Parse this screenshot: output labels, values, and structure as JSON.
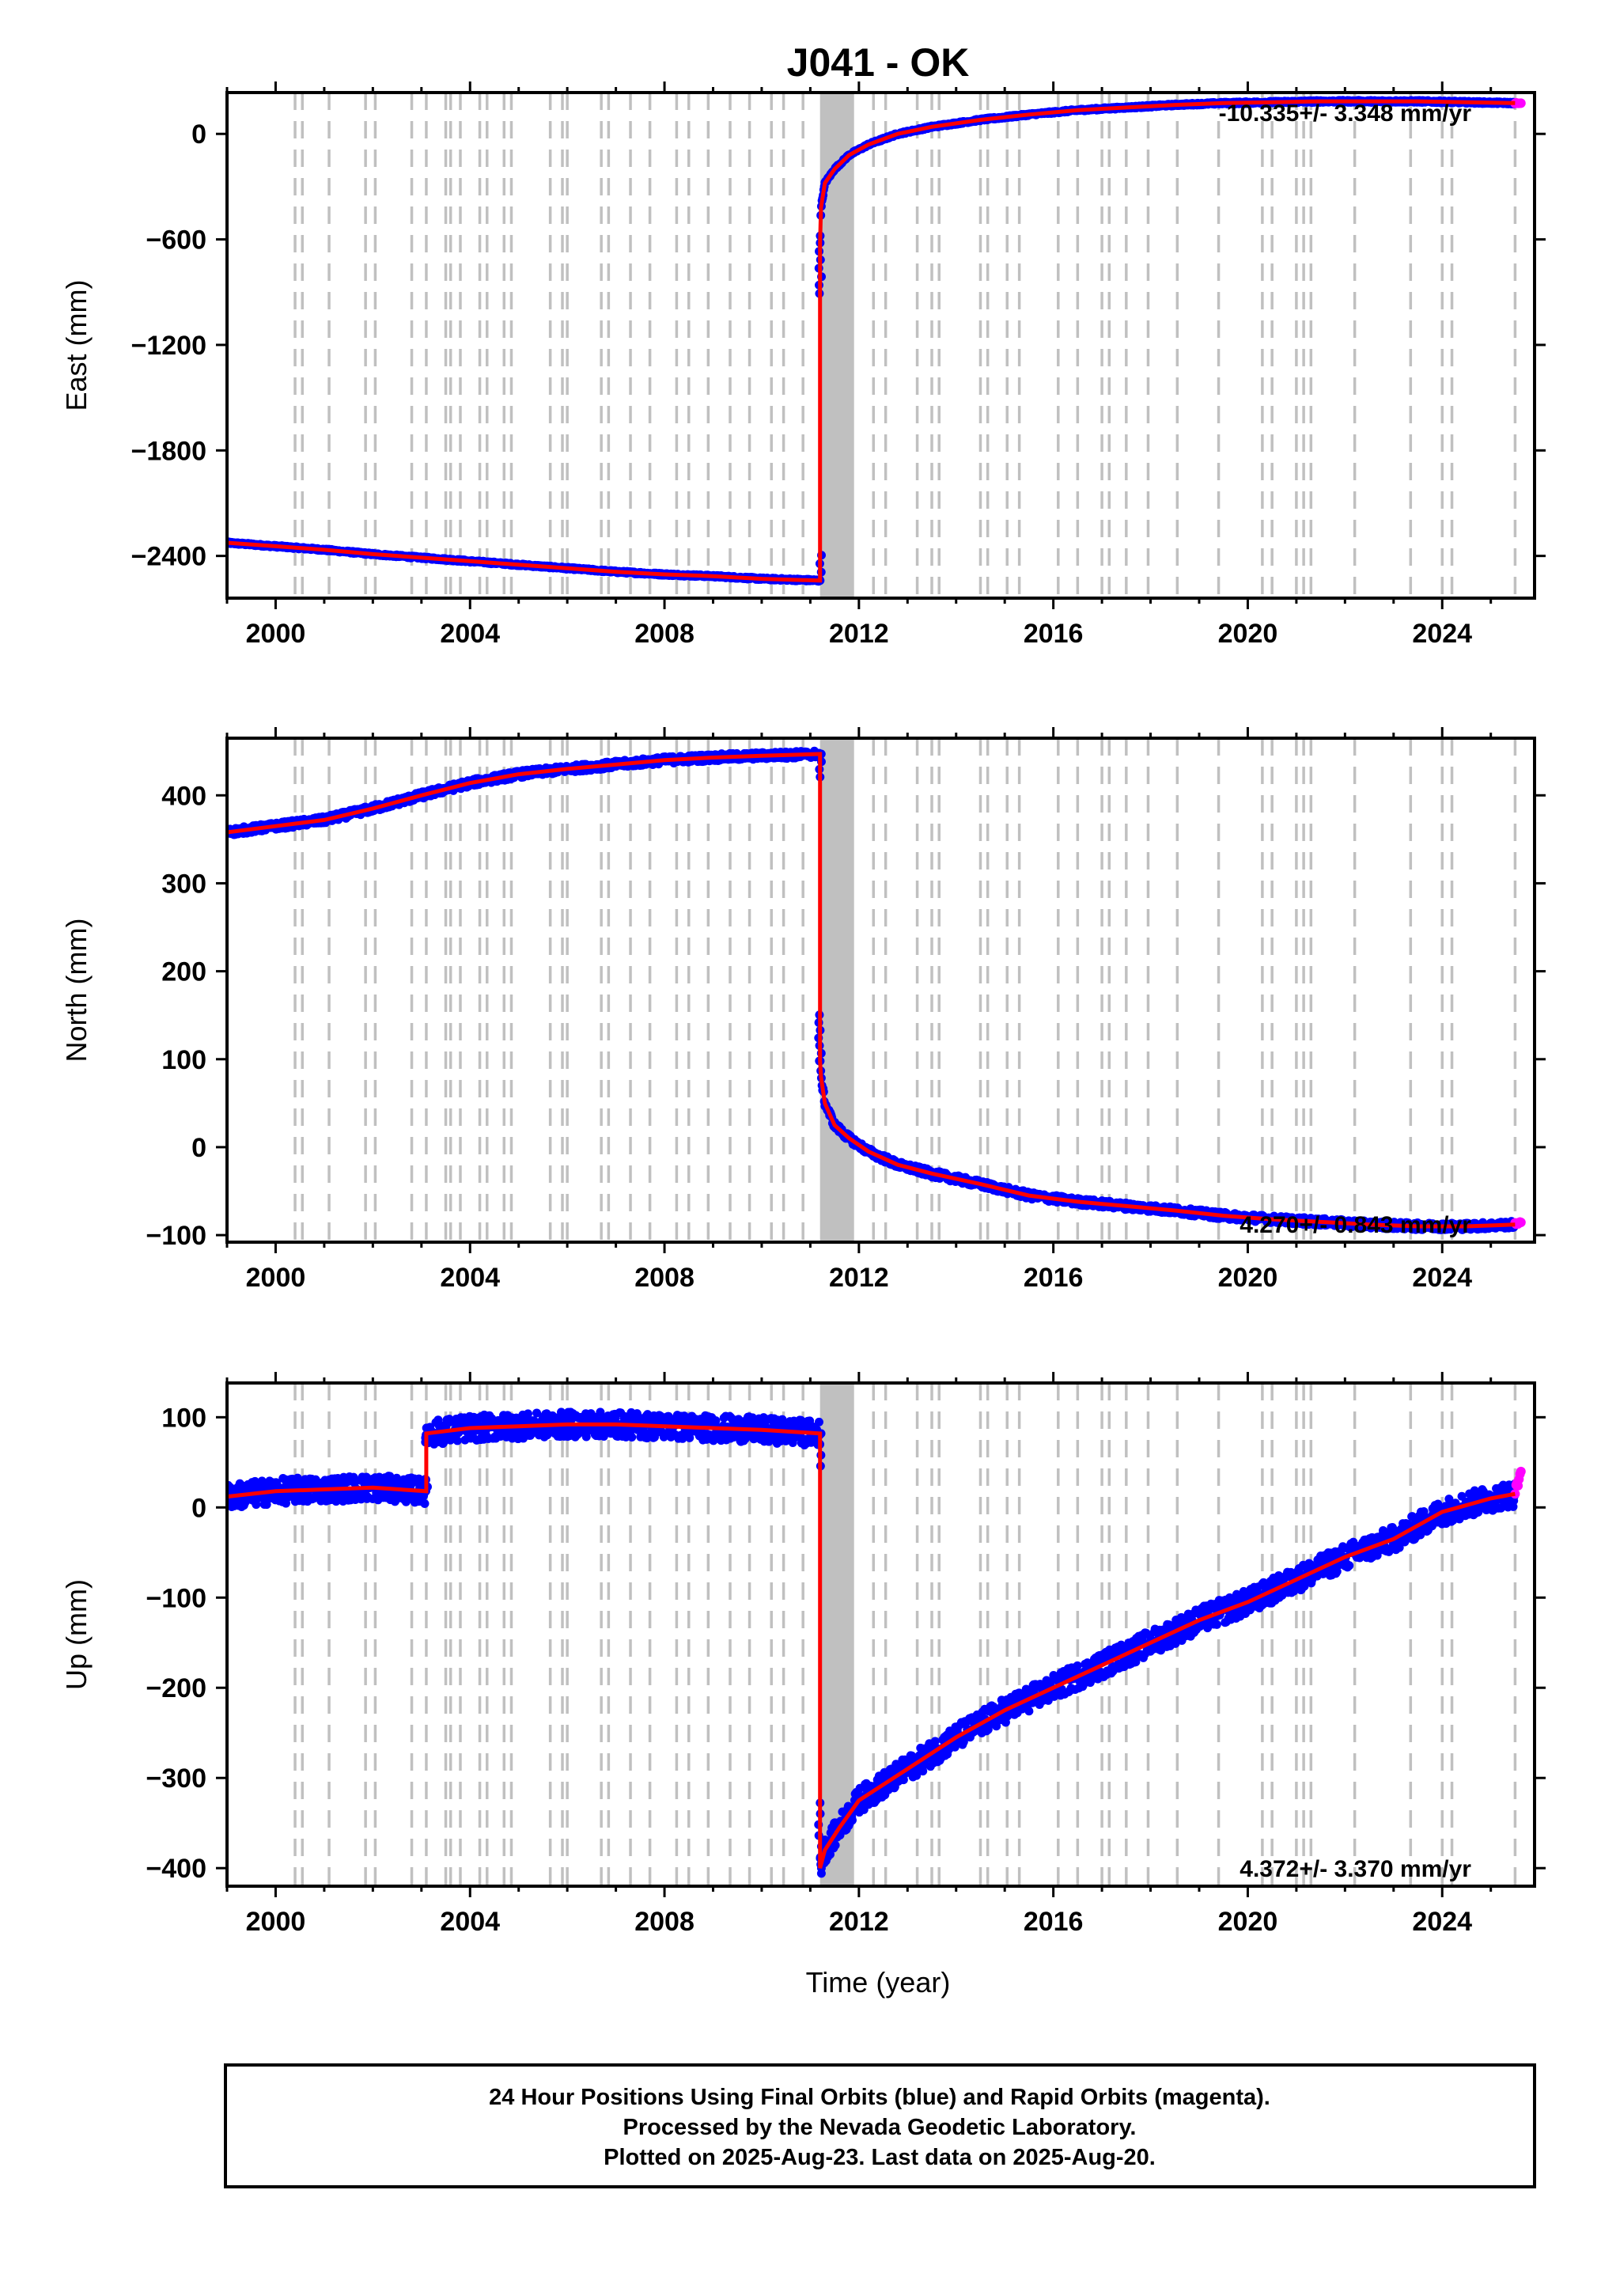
{
  "title": "J041 - OK",
  "xlabel": "Time (year)",
  "footer": {
    "line1": "24 Hour Positions Using Final Orbits (blue) and Rapid Orbits (magenta).",
    "line2": "Processed by the Nevada Geodetic Laboratory.",
    "line3": "Plotted on 2025-Aug-23. Last data on 2025-Aug-20."
  },
  "colors": {
    "final_orbits": "#0000ff",
    "rapid_orbits": "#ff00ff",
    "model": "#ff0000",
    "event_lines": "#c0c0c0"
  },
  "x_ticks": [
    "2000",
    "2004",
    "2008",
    "2012",
    "2016",
    "2020",
    "2024"
  ],
  "event_years": [
    2000.4,
    2000.55,
    2001.1,
    2001.85,
    2002.05,
    2002.8,
    2003.1,
    2003.5,
    2003.6,
    2003.8,
    2004.2,
    2004.35,
    2004.7,
    2004.85,
    2005.65,
    2005.9,
    2006.0,
    2006.7,
    2006.85,
    2007.3,
    2007.7,
    2008.25,
    2008.5,
    2008.9,
    2009.35,
    2009.75,
    2010.2,
    2010.45,
    2010.85,
    2012.3,
    2012.55,
    2013.2,
    2013.5,
    2013.65,
    2014.5,
    2014.65,
    2015.05,
    2015.3,
    2016.1,
    2016.5,
    2017.0,
    2017.15,
    2017.5,
    2017.95,
    2018.55,
    2019.4,
    2020.3,
    2020.5,
    2021.0,
    2021.15,
    2021.3,
    2022.2,
    2023.35,
    2024.0,
    2024.2,
    2025.5
  ],
  "dense_event_band": [
    2011.2,
    2011.9
  ],
  "chart_data": [
    {
      "type": "scatter",
      "component": "East",
      "ylabel": "East (mm)",
      "ylim": [
        -2640,
        235
      ],
      "yticks": [
        "0",
        "−600",
        "−1200",
        "−1800",
        "−2400"
      ],
      "ytick_values": [
        0,
        -600,
        -1200,
        -1800,
        -2400
      ],
      "rate": "-10.335+/- 3.348 mm/yr",
      "rate_position": "top-right",
      "series": [
        {
          "name": "Final Orbits (blue)",
          "x": [
            1999.0,
            2000,
            2001,
            2002,
            2003,
            2004,
            2005,
            2006,
            2007,
            2008,
            2009,
            2010,
            2011.2,
            2011.2,
            2011.22,
            2011.3,
            2011.5,
            2011.8,
            2012.2,
            2012.8,
            2013.5,
            2014.5,
            2015.5,
            2016.5,
            2017.5,
            2018.5,
            2019.5,
            2020.5,
            2021.5,
            2022.5,
            2023.5,
            2024.5,
            2025.5
          ],
          "y": [
            -2325,
            -2345,
            -2365,
            -2390,
            -2410,
            -2430,
            -2450,
            -2470,
            -2490,
            -2505,
            -2515,
            -2530,
            -2540,
            -620,
            -420,
            -280,
            -200,
            -120,
            -60,
            0,
            40,
            80,
            110,
            135,
            150,
            165,
            175,
            180,
            185,
            185,
            185,
            180,
            175
          ]
        },
        {
          "name": "Rapid Orbits (magenta)",
          "x": [
            2025.5,
            2025.62
          ],
          "y": [
            175,
            173
          ]
        }
      ]
    },
    {
      "type": "scatter",
      "component": "North",
      "ylabel": "North (mm)",
      "ylim": [
        -108,
        465
      ],
      "yticks": [
        "400",
        "300",
        "200",
        "100",
        "0",
        "−100"
      ],
      "ytick_values": [
        400,
        300,
        200,
        100,
        0,
        -100
      ],
      "rate": "4.270+/- 0.843 mm/yr",
      "rate_position": "bottom-right",
      "series": [
        {
          "name": "Final Orbits (blue)",
          "x": [
            1999.0,
            2000,
            2001,
            2002,
            2003,
            2004,
            2005,
            2006,
            2007,
            2008,
            2009,
            2010,
            2011.2,
            2011.2,
            2011.22,
            2011.3,
            2011.5,
            2011.8,
            2012.2,
            2012.8,
            2013.5,
            2014.5,
            2015.5,
            2016.5,
            2017.5,
            2018.5,
            2019.5,
            2020.5,
            2021.5,
            2022.5,
            2023.5,
            2024.5,
            2025.5
          ],
          "y": [
            358,
            365,
            372,
            385,
            400,
            414,
            424,
            430,
            435,
            440,
            443,
            445,
            447,
            98,
            80,
            50,
            25,
            10,
            -5,
            -20,
            -30,
            -42,
            -55,
            -62,
            -67,
            -72,
            -78,
            -82,
            -85,
            -88,
            -90,
            -90,
            -88
          ]
        },
        {
          "name": "Rapid Orbits (magenta)",
          "x": [
            2025.5,
            2025.62
          ],
          "y": [
            -88,
            -84
          ]
        }
      ]
    },
    {
      "type": "scatter",
      "component": "Up",
      "ylabel": "Up (mm)",
      "ylim": [
        -420,
        138
      ],
      "yticks": [
        "100",
        "0",
        "−100",
        "−200",
        "−300",
        "−400"
      ],
      "ytick_values": [
        100,
        0,
        -100,
        -200,
        -300,
        -400
      ],
      "rate": "4.372+/- 3.370 mm/yr",
      "rate_position": "bottom-right",
      "series": [
        {
          "name": "Final Orbits (blue)",
          "x": [
            1999.0,
            2000,
            2001,
            2002,
            2003.1,
            2003.1,
            2004,
            2005,
            2006,
            2007,
            2008,
            2009,
            2010,
            2011.2,
            2011.2,
            2011.3,
            2011.6,
            2012,
            2013,
            2014,
            2015,
            2016,
            2017,
            2018,
            2019,
            2020,
            2021,
            2022,
            2023,
            2024,
            2025,
            2025.5
          ],
          "y": [
            12,
            18,
            20,
            22,
            18,
            82,
            88,
            90,
            92,
            92,
            90,
            88,
            86,
            82,
            -400,
            -380,
            -355,
            -325,
            -290,
            -255,
            -225,
            -200,
            -175,
            -150,
            -125,
            -105,
            -80,
            -55,
            -35,
            -5,
            10,
            15
          ]
        },
        {
          "name": "Rapid Orbits (magenta)",
          "x": [
            2025.5,
            2025.62
          ],
          "y": [
            20,
            38
          ]
        }
      ]
    }
  ]
}
